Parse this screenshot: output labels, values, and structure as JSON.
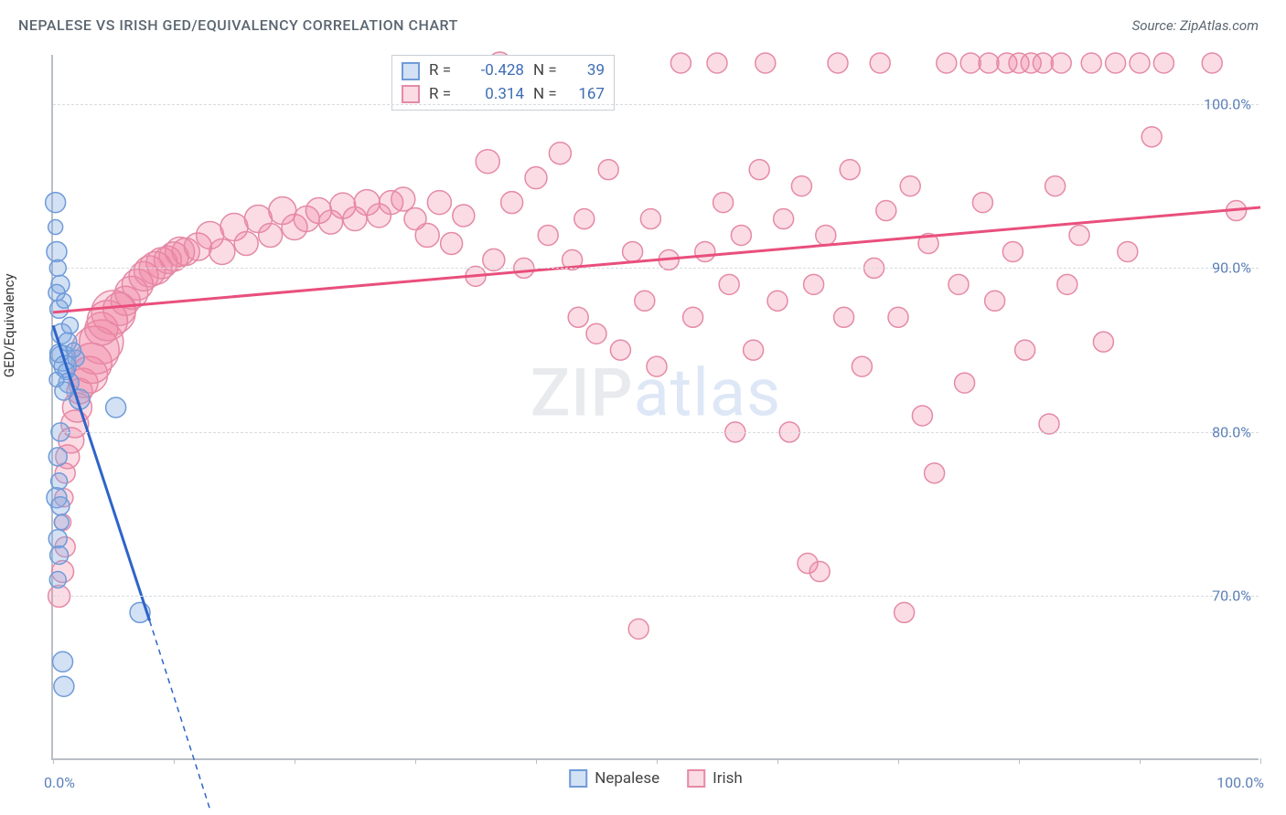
{
  "title": "NEPALESE VS IRISH GED/EQUIVALENCY CORRELATION CHART",
  "source_label": "Source: ZipAtlas.com",
  "ylabel": "GED/Equivalency",
  "watermark_a": "ZIP",
  "watermark_b": "atlas",
  "axes": {
    "xlim": [
      0,
      100
    ],
    "ylim": [
      60,
      103
    ],
    "y_ticks": [
      70,
      80,
      90,
      100
    ],
    "y_tick_labels": [
      "70.0%",
      "80.0%",
      "90.0%",
      "100.0%"
    ],
    "x_ticks": [
      0,
      10,
      20,
      30,
      40,
      50,
      60,
      70,
      80,
      90,
      100
    ],
    "x0_label": "0.0%",
    "x100_label": "100.0%",
    "grid_color": "#d7dce1",
    "axis_color": "#b9bfc6",
    "tick_label_color": "#5b7fb8"
  },
  "colors": {
    "nepalese_fill": "rgba(130,170,225,0.35)",
    "nepalese_stroke": "#6f9bd8",
    "nepalese_line": "#2e64c9",
    "irish_fill": "rgba(240,130,160,0.28)",
    "irish_stroke": "#e58aa6",
    "irish_line": "#e94f7c",
    "text": "#5a6570",
    "value": "#3d6db5"
  },
  "stats_box": {
    "rows": [
      {
        "swatch": "nepalese",
        "r_label": "R =",
        "r_value": "-0.428",
        "n_label": "N =",
        "n_value": "39"
      },
      {
        "swatch": "irish",
        "r_label": "R =",
        "r_value": "0.314",
        "n_label": "N =",
        "n_value": "167"
      }
    ]
  },
  "legend": {
    "items": [
      {
        "swatch": "nepalese",
        "label": "Nepalese"
      },
      {
        "swatch": "irish",
        "label": "Irish"
      }
    ]
  },
  "series": {
    "nepalese": {
      "type": "scatter",
      "marker": "circle",
      "points": [
        {
          "x": 0.2,
          "y": 94,
          "r": 11
        },
        {
          "x": 0.3,
          "y": 91,
          "r": 11
        },
        {
          "x": 0.4,
          "y": 90,
          "r": 9
        },
        {
          "x": 0.6,
          "y": 89,
          "r": 10
        },
        {
          "x": 0.5,
          "y": 87.5,
          "r": 10
        },
        {
          "x": 0.7,
          "y": 86,
          "r": 11
        },
        {
          "x": 0.8,
          "y": 84.5,
          "r": 14
        },
        {
          "x": 0.5,
          "y": 84.8,
          "r": 10
        },
        {
          "x": 1.0,
          "y": 84,
          "r": 12
        },
        {
          "x": 1.1,
          "y": 83.7,
          "r": 9
        },
        {
          "x": 1.3,
          "y": 83,
          "r": 11
        },
        {
          "x": 0.9,
          "y": 82.5,
          "r": 10
        },
        {
          "x": 1.9,
          "y": 84.5,
          "r": 9
        },
        {
          "x": 2.2,
          "y": 82,
          "r": 11
        },
        {
          "x": 5.2,
          "y": 81.5,
          "r": 11
        },
        {
          "x": 0.6,
          "y": 80,
          "r": 10
        },
        {
          "x": 0.4,
          "y": 78.5,
          "r": 10
        },
        {
          "x": 0.5,
          "y": 77,
          "r": 9
        },
        {
          "x": 0.3,
          "y": 76,
          "r": 11
        },
        {
          "x": 0.6,
          "y": 75.5,
          "r": 10
        },
        {
          "x": 0.7,
          "y": 74.5,
          "r": 8
        },
        {
          "x": 0.4,
          "y": 73.5,
          "r": 10
        },
        {
          "x": 0.5,
          "y": 72.5,
          "r": 10
        },
        {
          "x": 0.4,
          "y": 71,
          "r": 9
        },
        {
          "x": 7.2,
          "y": 69,
          "r": 11
        },
        {
          "x": 0.8,
          "y": 66,
          "r": 11
        },
        {
          "x": 0.9,
          "y": 64.5,
          "r": 11
        },
        {
          "x": 1.2,
          "y": 85.5,
          "r": 10
        },
        {
          "x": 0.3,
          "y": 88.5,
          "r": 9
        },
        {
          "x": 0.9,
          "y": 88,
          "r": 8
        },
        {
          "x": 1.4,
          "y": 86.5,
          "r": 9
        },
        {
          "x": 1.7,
          "y": 85,
          "r": 8
        },
        {
          "x": 0.2,
          "y": 92.5,
          "r": 8
        },
        {
          "x": 0.3,
          "y": 83.2,
          "r": 8
        }
      ],
      "trend": {
        "x1": 0,
        "y1": 86.5,
        "x2": 8,
        "y2": 68.5,
        "dash_continue_to_x": 13,
        "dash_continue_to_y": 57
      }
    },
    "irish": {
      "type": "scatter",
      "marker": "circle",
      "points": [
        {
          "x": 0.5,
          "y": 70,
          "r": 12
        },
        {
          "x": 0.8,
          "y": 71.5,
          "r": 12
        },
        {
          "x": 1.0,
          "y": 73,
          "r": 11
        },
        {
          "x": 0.8,
          "y": 74.5,
          "r": 9
        },
        {
          "x": 0.9,
          "y": 76,
          "r": 10
        },
        {
          "x": 1.0,
          "y": 77.5,
          "r": 11
        },
        {
          "x": 1.2,
          "y": 78.5,
          "r": 13
        },
        {
          "x": 1.5,
          "y": 79.5,
          "r": 14
        },
        {
          "x": 1.8,
          "y": 80.5,
          "r": 15
        },
        {
          "x": 2.0,
          "y": 81.5,
          "r": 16
        },
        {
          "x": 2.2,
          "y": 82.5,
          "r": 14
        },
        {
          "x": 2.5,
          "y": 83,
          "r": 16
        },
        {
          "x": 3.0,
          "y": 83.5,
          "r": 20
        },
        {
          "x": 3.2,
          "y": 84.2,
          "r": 22
        },
        {
          "x": 3.5,
          "y": 85,
          "r": 26
        },
        {
          "x": 4.0,
          "y": 85.5,
          "r": 24
        },
        {
          "x": 4.0,
          "y": 86.3,
          "r": 18
        },
        {
          "x": 4.5,
          "y": 86.8,
          "r": 22
        },
        {
          "x": 5.0,
          "y": 87.3,
          "r": 24
        },
        {
          "x": 5.5,
          "y": 87.5,
          "r": 18
        },
        {
          "x": 6.0,
          "y": 88.0,
          "r": 16
        },
        {
          "x": 6.5,
          "y": 88.5,
          "r": 18
        },
        {
          "x": 7.0,
          "y": 89,
          "r": 17
        },
        {
          "x": 7.5,
          "y": 89.5,
          "r": 16
        },
        {
          "x": 8.0,
          "y": 89.8,
          "r": 17
        },
        {
          "x": 8.5,
          "y": 90,
          "r": 18
        },
        {
          "x": 9.0,
          "y": 90.3,
          "r": 17
        },
        {
          "x": 9.5,
          "y": 90.5,
          "r": 15
        },
        {
          "x": 10,
          "y": 90.7,
          "r": 16
        },
        {
          "x": 10.5,
          "y": 91,
          "r": 16
        },
        {
          "x": 11,
          "y": 91,
          "r": 15
        },
        {
          "x": 12,
          "y": 91.3,
          "r": 15
        },
        {
          "x": 13,
          "y": 92,
          "r": 15
        },
        {
          "x": 14,
          "y": 91,
          "r": 14
        },
        {
          "x": 15,
          "y": 92.5,
          "r": 15
        },
        {
          "x": 16,
          "y": 91.5,
          "r": 13
        },
        {
          "x": 17,
          "y": 93,
          "r": 15
        },
        {
          "x": 18,
          "y": 92,
          "r": 13
        },
        {
          "x": 19,
          "y": 93.5,
          "r": 15
        },
        {
          "x": 20,
          "y": 92.5,
          "r": 14
        },
        {
          "x": 21,
          "y": 93,
          "r": 14
        },
        {
          "x": 22,
          "y": 93.5,
          "r": 14
        },
        {
          "x": 23,
          "y": 92.8,
          "r": 13
        },
        {
          "x": 24,
          "y": 93.8,
          "r": 14
        },
        {
          "x": 25,
          "y": 93,
          "r": 13
        },
        {
          "x": 26,
          "y": 94,
          "r": 14
        },
        {
          "x": 27,
          "y": 93.2,
          "r": 13
        },
        {
          "x": 28,
          "y": 94,
          "r": 13
        },
        {
          "x": 29,
          "y": 94.2,
          "r": 13
        },
        {
          "x": 30,
          "y": 93,
          "r": 12
        },
        {
          "x": 31,
          "y": 92,
          "r": 13
        },
        {
          "x": 32,
          "y": 94,
          "r": 13
        },
        {
          "x": 33,
          "y": 91.5,
          "r": 12
        },
        {
          "x": 34,
          "y": 93.2,
          "r": 12
        },
        {
          "x": 35,
          "y": 89.5,
          "r": 11
        },
        {
          "x": 36,
          "y": 96.5,
          "r": 13
        },
        {
          "x": 36.5,
          "y": 90.5,
          "r": 12
        },
        {
          "x": 37,
          "y": 102.5,
          "r": 12
        },
        {
          "x": 38,
          "y": 94,
          "r": 12
        },
        {
          "x": 39,
          "y": 90,
          "r": 11
        },
        {
          "x": 40,
          "y": 95.5,
          "r": 12
        },
        {
          "x": 41,
          "y": 92,
          "r": 11
        },
        {
          "x": 42,
          "y": 97,
          "r": 12
        },
        {
          "x": 43,
          "y": 90.5,
          "r": 11
        },
        {
          "x": 43.5,
          "y": 87,
          "r": 11
        },
        {
          "x": 44,
          "y": 93,
          "r": 11
        },
        {
          "x": 45,
          "y": 86,
          "r": 11
        },
        {
          "x": 46,
          "y": 96,
          "r": 11
        },
        {
          "x": 47,
          "y": 85,
          "r": 11
        },
        {
          "x": 48,
          "y": 91,
          "r": 11
        },
        {
          "x": 48.5,
          "y": 68,
          "r": 11
        },
        {
          "x": 49,
          "y": 88,
          "r": 11
        },
        {
          "x": 49.5,
          "y": 93,
          "r": 11
        },
        {
          "x": 50,
          "y": 84,
          "r": 11
        },
        {
          "x": 51,
          "y": 90.5,
          "r": 11
        },
        {
          "x": 52,
          "y": 102.5,
          "r": 11
        },
        {
          "x": 53,
          "y": 87,
          "r": 11
        },
        {
          "x": 54,
          "y": 91,
          "r": 11
        },
        {
          "x": 55,
          "y": 102.5,
          "r": 11
        },
        {
          "x": 55.5,
          "y": 94,
          "r": 11
        },
        {
          "x": 56,
          "y": 89,
          "r": 11
        },
        {
          "x": 56.5,
          "y": 80,
          "r": 11
        },
        {
          "x": 57,
          "y": 92,
          "r": 11
        },
        {
          "x": 58,
          "y": 85,
          "r": 11
        },
        {
          "x": 58.5,
          "y": 96,
          "r": 11
        },
        {
          "x": 59,
          "y": 102.5,
          "r": 11
        },
        {
          "x": 60,
          "y": 88,
          "r": 11
        },
        {
          "x": 60.5,
          "y": 93,
          "r": 11
        },
        {
          "x": 61,
          "y": 80,
          "r": 11
        },
        {
          "x": 62,
          "y": 95,
          "r": 11
        },
        {
          "x": 62.5,
          "y": 72,
          "r": 11
        },
        {
          "x": 63,
          "y": 89,
          "r": 11
        },
        {
          "x": 63.5,
          "y": 71.5,
          "r": 11
        },
        {
          "x": 64,
          "y": 92,
          "r": 11
        },
        {
          "x": 65,
          "y": 102.5,
          "r": 11
        },
        {
          "x": 65.5,
          "y": 87,
          "r": 11
        },
        {
          "x": 66,
          "y": 96,
          "r": 11
        },
        {
          "x": 67,
          "y": 84,
          "r": 11
        },
        {
          "x": 68,
          "y": 90,
          "r": 11
        },
        {
          "x": 68.5,
          "y": 102.5,
          "r": 11
        },
        {
          "x": 69,
          "y": 93.5,
          "r": 11
        },
        {
          "x": 70,
          "y": 87,
          "r": 11
        },
        {
          "x": 70.5,
          "y": 69,
          "r": 11
        },
        {
          "x": 71,
          "y": 95,
          "r": 11
        },
        {
          "x": 72,
          "y": 81,
          "r": 11
        },
        {
          "x": 72.5,
          "y": 91.5,
          "r": 11
        },
        {
          "x": 73,
          "y": 77.5,
          "r": 11
        },
        {
          "x": 74,
          "y": 102.5,
          "r": 11
        },
        {
          "x": 75,
          "y": 89,
          "r": 11
        },
        {
          "x": 75.5,
          "y": 83,
          "r": 11
        },
        {
          "x": 76,
          "y": 102.5,
          "r": 11
        },
        {
          "x": 77,
          "y": 94,
          "r": 11
        },
        {
          "x": 77.5,
          "y": 102.5,
          "r": 11
        },
        {
          "x": 78,
          "y": 88,
          "r": 11
        },
        {
          "x": 79,
          "y": 102.5,
          "r": 11
        },
        {
          "x": 79.5,
          "y": 91,
          "r": 11
        },
        {
          "x": 80,
          "y": 102.5,
          "r": 11
        },
        {
          "x": 80.5,
          "y": 85,
          "r": 11
        },
        {
          "x": 81,
          "y": 102.5,
          "r": 11
        },
        {
          "x": 82,
          "y": 102.5,
          "r": 11
        },
        {
          "x": 82.5,
          "y": 80.5,
          "r": 11
        },
        {
          "x": 83,
          "y": 95,
          "r": 11
        },
        {
          "x": 83.5,
          "y": 102.5,
          "r": 11
        },
        {
          "x": 84,
          "y": 89,
          "r": 11
        },
        {
          "x": 85,
          "y": 92,
          "r": 11
        },
        {
          "x": 86,
          "y": 102.5,
          "r": 11
        },
        {
          "x": 87,
          "y": 85.5,
          "r": 11
        },
        {
          "x": 88,
          "y": 102.5,
          "r": 11
        },
        {
          "x": 89,
          "y": 91,
          "r": 11
        },
        {
          "x": 90,
          "y": 102.5,
          "r": 11
        },
        {
          "x": 91,
          "y": 98,
          "r": 11
        },
        {
          "x": 92,
          "y": 102.5,
          "r": 11
        },
        {
          "x": 96,
          "y": 102.5,
          "r": 11
        },
        {
          "x": 98,
          "y": 93.5,
          "r": 11
        }
      ],
      "trend": {
        "x1": 0,
        "y1": 87.3,
        "x2": 100,
        "y2": 93.7
      }
    }
  }
}
